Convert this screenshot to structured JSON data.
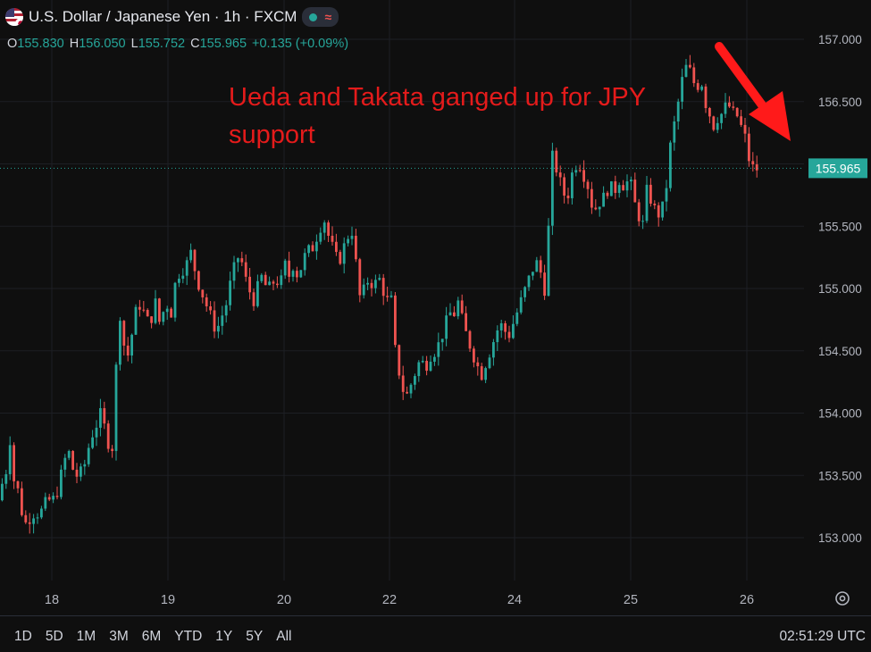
{
  "header": {
    "title": "U.S. Dollar / Japanese Yen · 1h · FXCM",
    "wave_icon": "≈"
  },
  "ohlc": {
    "o_label": "O",
    "o": "155.830",
    "h_label": "H",
    "h": "156.050",
    "l_label": "L",
    "l": "155.752",
    "c_label": "C",
    "c": "155.965",
    "change": "+0.135 (+0.09%)"
  },
  "annotation": "Ueda and Takata ganged up for JPY support",
  "price_badge": "155.965",
  "ranges": [
    "1D",
    "5D",
    "1M",
    "3M",
    "6M",
    "YTD",
    "1Y",
    "5Y",
    "All"
  ],
  "clock": "02:51:29 UTC",
  "colors": {
    "up": "#26a69a",
    "down": "#ef5350",
    "annotation": "#e41b1b",
    "background": "#0f0f0f"
  },
  "chart_data": {
    "type": "candlestick",
    "ylim": [
      152.6,
      157.15
    ],
    "y_ticks": [
      "157.000",
      "156.500",
      "156.000",
      "155.500",
      "155.000",
      "154.500",
      "154.000",
      "153.500",
      "153.000"
    ],
    "x_ticks": [
      "18",
      "19",
      "20",
      "22",
      "24",
      "25",
      "26"
    ],
    "last_price": 155.965,
    "close_path": [
      [
        0,
        153.3
      ],
      [
        3,
        153.7
      ],
      [
        6,
        153.5
      ],
      [
        9,
        153.9
      ],
      [
        12,
        153.5
      ],
      [
        18,
        153.4
      ],
      [
        26,
        153.1
      ],
      [
        35,
        153.2
      ],
      [
        44,
        153.2
      ],
      [
        52,
        153.3
      ],
      [
        58,
        153.3
      ],
      [
        64,
        153.4
      ],
      [
        70,
        153.6
      ],
      [
        75,
        153.7
      ],
      [
        82,
        153.5
      ],
      [
        88,
        153.5
      ],
      [
        94,
        153.6
      ],
      [
        100,
        153.8
      ],
      [
        106,
        153.9
      ],
      [
        112,
        154.0
      ],
      [
        118,
        153.8
      ],
      [
        124,
        153.7
      ],
      [
        128,
        154.3
      ],
      [
        133,
        154.8
      ],
      [
        140,
        154.4
      ],
      [
        148,
        154.7
      ],
      [
        153,
        154.9
      ],
      [
        160,
        154.8
      ],
      [
        166,
        154.7
      ],
      [
        172,
        154.9
      ],
      [
        178,
        154.7
      ],
      [
        184,
        154.9
      ],
      [
        190,
        154.8
      ],
      [
        196,
        155.1
      ],
      [
        202,
        155.15
      ],
      [
        208,
        155.2
      ],
      [
        213,
        155.3
      ],
      [
        218,
        155.1
      ],
      [
        223,
        155.0
      ],
      [
        228,
        154.9
      ],
      [
        233,
        154.8
      ],
      [
        238,
        154.7
      ],
      [
        243,
        154.7
      ],
      [
        248,
        154.8
      ],
      [
        253,
        154.9
      ],
      [
        258,
        155.1
      ],
      [
        263,
        155.2
      ],
      [
        267,
        155.3
      ],
      [
        272,
        155.1
      ],
      [
        277,
        155.0
      ],
      [
        282,
        154.9
      ],
      [
        287,
        155.0
      ],
      [
        292,
        155.1
      ],
      [
        297,
        155.0
      ],
      [
        302,
        155.0
      ],
      [
        307,
        155.1
      ],
      [
        312,
        155.0
      ],
      [
        317,
        155.2
      ],
      [
        322,
        155.1
      ],
      [
        327,
        155.2
      ],
      [
        332,
        155.1
      ],
      [
        337,
        155.2
      ],
      [
        342,
        155.3
      ],
      [
        347,
        155.3
      ],
      [
        352,
        155.4
      ],
      [
        357,
        155.5
      ],
      [
        362,
        155.55
      ],
      [
        367,
        155.4
      ],
      [
        372,
        155.3
      ],
      [
        377,
        155.2
      ],
      [
        382,
        155.3
      ],
      [
        387,
        155.4
      ],
      [
        392,
        155.5
      ],
      [
        397,
        155.2
      ],
      [
        402,
        154.9
      ],
      [
        407,
        155.0
      ],
      [
        412,
        155.1
      ],
      [
        417,
        155.0
      ],
      [
        422,
        155.1
      ],
      [
        427,
        155.0
      ],
      [
        432,
        154.9
      ],
      [
        437,
        154.9
      ],
      [
        442,
        154.4
      ],
      [
        447,
        154.3
      ],
      [
        452,
        154.1
      ],
      [
        457,
        154.2
      ],
      [
        462,
        154.3
      ],
      [
        467,
        154.4
      ],
      [
        472,
        154.4
      ],
      [
        477,
        154.4
      ],
      [
        482,
        154.5
      ],
      [
        487,
        154.5
      ],
      [
        492,
        154.6
      ],
      [
        497,
        154.7
      ],
      [
        502,
        154.8
      ],
      [
        507,
        154.8
      ],
      [
        512,
        154.9
      ],
      [
        517,
        154.7
      ],
      [
        522,
        154.6
      ],
      [
        527,
        154.5
      ],
      [
        532,
        154.4
      ],
      [
        537,
        154.3
      ],
      [
        542,
        154.4
      ],
      [
        547,
        154.5
      ],
      [
        552,
        154.6
      ],
      [
        557,
        154.7
      ],
      [
        562,
        154.7
      ],
      [
        567,
        154.6
      ],
      [
        572,
        154.7
      ],
      [
        577,
        154.8
      ],
      [
        582,
        154.9
      ],
      [
        587,
        155.0
      ],
      [
        592,
        155.1
      ],
      [
        597,
        155.2
      ],
      [
        602,
        155.2
      ],
      [
        607,
        155.0
      ],
      [
        611,
        155.0
      ],
      [
        614,
        155.9
      ],
      [
        618,
        156.1
      ],
      [
        623,
        155.9
      ],
      [
        628,
        155.8
      ],
      [
        633,
        155.7
      ],
      [
        638,
        155.9
      ],
      [
        643,
        156.0
      ],
      [
        648,
        156.0
      ],
      [
        653,
        155.9
      ],
      [
        658,
        155.8
      ],
      [
        663,
        155.6
      ],
      [
        668,
        155.7
      ],
      [
        673,
        155.7
      ],
      [
        678,
        155.8
      ],
      [
        683,
        155.8
      ],
      [
        688,
        155.8
      ],
      [
        693,
        155.9
      ],
      [
        698,
        155.8
      ],
      [
        703,
        155.9
      ],
      [
        708,
        155.7
      ],
      [
        713,
        155.6
      ],
      [
        718,
        155.5
      ],
      [
        723,
        155.8
      ],
      [
        728,
        155.7
      ],
      [
        733,
        155.6
      ],
      [
        738,
        155.6
      ],
      [
        743,
        155.7
      ],
      [
        748,
        156.1
      ],
      [
        753,
        156.3
      ],
      [
        758,
        156.5
      ],
      [
        763,
        156.7
      ],
      [
        768,
        156.8
      ],
      [
        773,
        156.7
      ],
      [
        778,
        156.6
      ],
      [
        783,
        156.7
      ],
      [
        788,
        156.5
      ],
      [
        793,
        156.4
      ],
      [
        798,
        156.3
      ],
      [
        803,
        156.4
      ],
      [
        808,
        156.4
      ],
      [
        813,
        156.5
      ],
      [
        818,
        156.4
      ],
      [
        823,
        156.4
      ],
      [
        828,
        156.3
      ],
      [
        833,
        156.2
      ],
      [
        838,
        156.0
      ],
      [
        843,
        155.95
      ],
      [
        847,
        155.965
      ]
    ]
  }
}
